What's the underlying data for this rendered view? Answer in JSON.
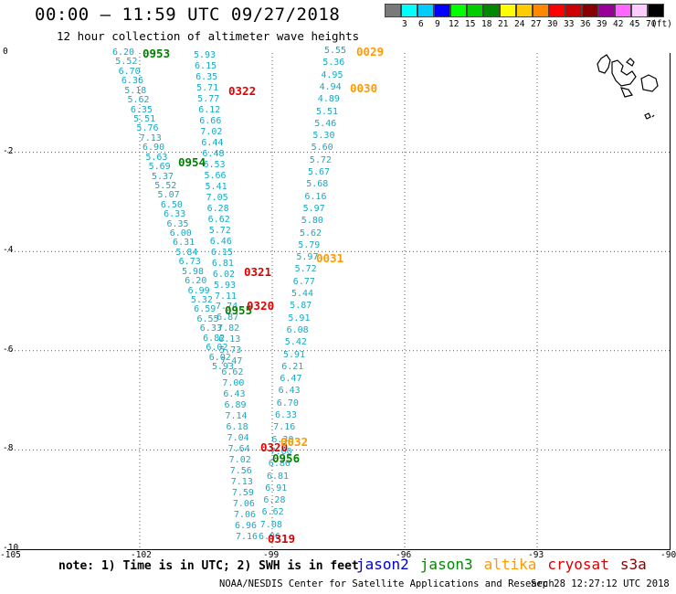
{
  "header": {
    "title": "00:00 – 11:59 UTC 09/27/2018",
    "subtitle": "12 hour collection of altimeter wave heights"
  },
  "legend": {
    "colors": [
      "#7a7a7a",
      "#00ffff",
      "#00ccff",
      "#0000ff",
      "#00ff00",
      "#00cc00",
      "#008800",
      "#ffff00",
      "#ffcc00",
      "#ff8800",
      "#ff0000",
      "#cc0000",
      "#880000",
      "#990099",
      "#ff66ff",
      "#ffccff",
      "#000000"
    ],
    "labels": [
      "3",
      "6",
      "9",
      "12",
      "15",
      "18",
      "21",
      "24",
      "27",
      "30",
      "33",
      "36",
      "39",
      "42",
      "45",
      "70",
      "(ft)"
    ]
  },
  "axes": {
    "x_ticks": [
      "-105",
      "-102",
      "-99",
      "-96",
      "-93",
      "-90"
    ],
    "y_ticks": [
      "0",
      "-2",
      "-4",
      "-6",
      "-8",
      "-10"
    ]
  },
  "pass_labels": [
    {
      "text": "0953",
      "color": "#008000"
    },
    {
      "text": "0954",
      "color": "#008000"
    },
    {
      "text": "0955",
      "color": "#008000"
    },
    {
      "text": "0956",
      "color": "#008000"
    },
    {
      "text": "0322",
      "color": "#e00000"
    },
    {
      "text": "0321",
      "color": "#e00000"
    },
    {
      "text": "0320",
      "color": "#e00000"
    },
    {
      "text": "0320",
      "color": "#e00000"
    },
    {
      "text": "0319",
      "color": "#e00000"
    },
    {
      "text": "0029",
      "color": "#ff9900"
    },
    {
      "text": "0030",
      "color": "#ff9900"
    },
    {
      "text": "0031",
      "color": "#ff9900"
    },
    {
      "text": "0032",
      "color": "#ff9900"
    }
  ],
  "track_values": {
    "track_a": [
      "6.20",
      "5.52",
      "6.70",
      "6.36",
      "5.18",
      "5.62",
      "6.35",
      "5.51",
      "5.76",
      "7.13",
      "6.90",
      "5.63",
      "5.69",
      "5.37",
      "5.52",
      "5.07",
      "6.50",
      "6.33",
      "6.35",
      "6.00",
      "6.31",
      "5.84",
      "6.73",
      "5.98",
      "6.20",
      "6.99",
      "5.32",
      "6.59",
      "6.55",
      "6.33",
      "6.82",
      "6.02",
      "6.02",
      "5.93"
    ],
    "track_b": [
      "5.93",
      "6.15",
      "6.35",
      "5.71",
      "5.77",
      "6.12",
      "6.66",
      "7.02",
      "6.44",
      "6.48",
      "6.53",
      "5.66",
      "5.41",
      "7.05",
      "6.28",
      "6.62",
      "5.72",
      "6.46",
      "6.15",
      "6.81",
      "6.02",
      "5.93",
      "7.11",
      "7.74",
      "6.87",
      "7.82",
      "6.13",
      "5.73",
      "7.47",
      "6.62",
      "7.00",
      "6.43",
      "6.89",
      "7.14",
      "6.18",
      "7.04",
      "7.64",
      "7.02",
      "7.56",
      "7.13",
      "7.59",
      "7.06",
      "7.06",
      "6.96",
      "7.16"
    ],
    "track_c": [
      "5.55",
      "5.36",
      "4.95",
      "4.94",
      "4.89",
      "5.51",
      "5.46",
      "5.30",
      "5.60",
      "5.72",
      "5.67",
      "5.68",
      "6.16",
      "5.97",
      "5.80",
      "5.62",
      "5.79",
      "5.97",
      "5.72",
      "6.77",
      "5.44",
      "5.87",
      "5.91",
      "6.08",
      "5.42",
      "5.91",
      "6.21",
      "6.47",
      "6.43",
      "6.70",
      "6.33",
      "7.16",
      "6.30",
      "7.00",
      "6.86",
      "6.81",
      "6.91",
      "6.28",
      "6.62",
      "7.08",
      "6.96"
    ]
  },
  "footer": {
    "note": "note: 1) Time is in UTC; 2) SWH is in feet",
    "satellites": [
      {
        "name": "jason2",
        "color": "#0000cc"
      },
      {
        "name": "jason3",
        "color": "#008800"
      },
      {
        "name": "altika",
        "color": "#ff9900"
      },
      {
        "name": "cryosat",
        "color": "#dd0000"
      },
      {
        "name": "s3a",
        "color": "#880000"
      }
    ],
    "credit": "NOAA/NESDIS Center for Satellite Applications and Research",
    "timestamp": "Sep 28 12:27:12 UTC 2018"
  }
}
